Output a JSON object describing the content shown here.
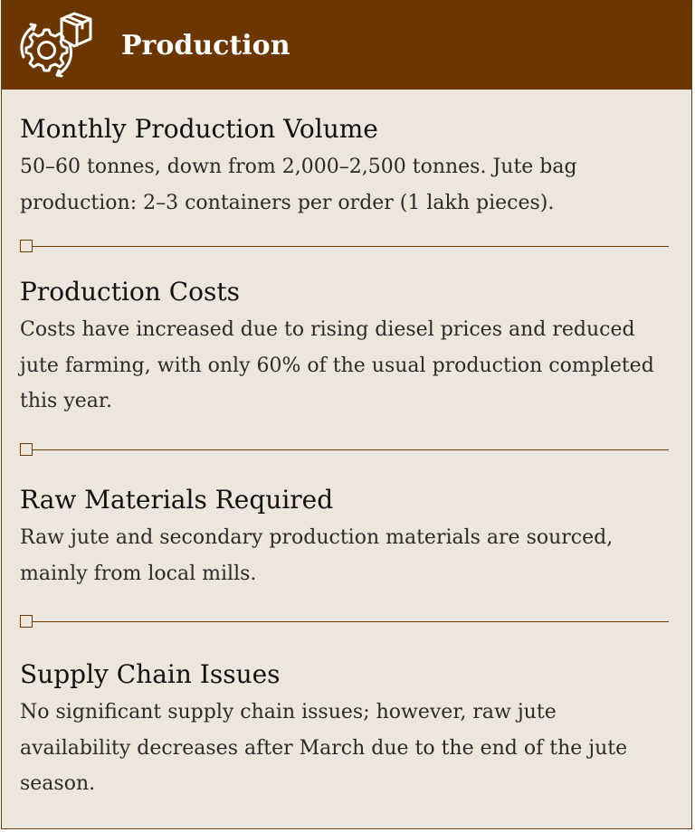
{
  "header": {
    "title": "Production",
    "icon": "gear-with-box-icon"
  },
  "sections": [
    {
      "title": "Monthly Production Volume",
      "body": "50–60 tonnes, down from 2,000–2,500 tonnes. Jute bag production: 2–3 containers per order (1 lakh pieces)."
    },
    {
      "title": "Production Costs",
      "body": "Costs have increased due to rising diesel prices and reduced jute farming, with only 60% of the usual production completed this year."
    },
    {
      "title": "Raw Materials Required",
      "body": "Raw jute and secondary production materials are sourced, mainly from local mills."
    },
    {
      "title": "Supply Chain Issues",
      "body": "No significant supply chain issues; however, raw jute availability decreases after March due to the end of the jute season."
    }
  ],
  "colors": {
    "header_bg": "#6b3600",
    "card_bg": "#ede6dc",
    "accent": "#6b3a0b"
  }
}
